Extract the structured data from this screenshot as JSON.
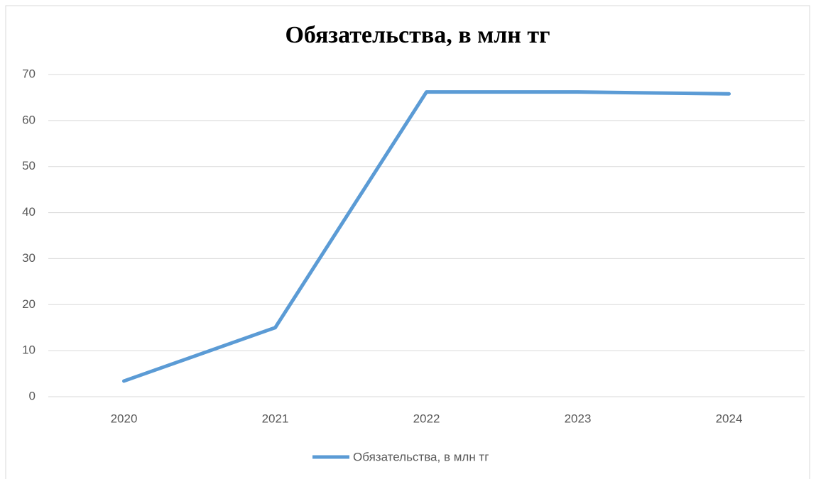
{
  "chart_data": {
    "type": "line",
    "title": "Обязательства, в млн тг",
    "categories": [
      "2020",
      "2021",
      "2022",
      "2023",
      "2024"
    ],
    "series": [
      {
        "name": "Обязательства, в млн тг",
        "color": "#5b9bd5",
        "values": [
          3.4,
          15,
          66.2,
          66.2,
          65.8
        ]
      }
    ],
    "ylim": [
      0,
      70
    ],
    "yticks": [
      0,
      10,
      20,
      30,
      40,
      50,
      60,
      70
    ],
    "grid": true,
    "legend": "bottom"
  }
}
